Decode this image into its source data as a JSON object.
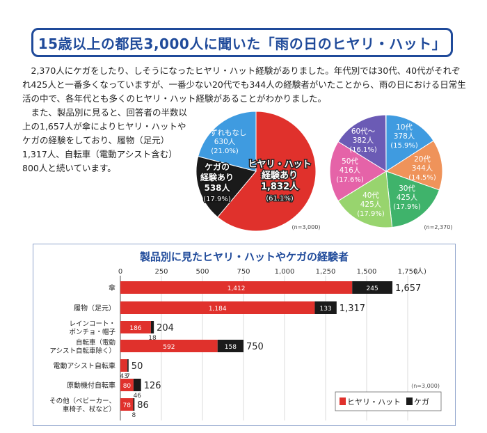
{
  "header": {
    "title": "15歳以上の都民3,000人に聞いた「雨の日のヒヤリ・ハット」"
  },
  "body": {
    "paragraph1": "2,370人にケガをしたり、しそうになったヒヤリ・ハット経験がありました。年代別では30代、40代がそれぞれ425人と一番多くなっていますが、一番少ない20代でも344人の経験者がいたことから、雨の日における日常生活の中で、各年代とも多くのヒヤリ・ハット経験があることがわかりました。",
    "paragraph2": "また、製品別に見ると、回答者の半数以上の1,657人が傘によりヒヤリ・ハットやケガの経験をしており、履物（足元）1,317人、自転車（電動アシスト含む）800人と続いています。"
  },
  "chart_data": [
    {
      "type": "pie",
      "note": "(n=3,000)",
      "slices": [
        {
          "label": "ヒヤリ・ハット経験あり",
          "count": "1,832人",
          "percent_label": "(61.1%)",
          "value": 1832,
          "percent": 61.1,
          "color": "#e0312c"
        },
        {
          "label": "ケガの経験あり",
          "count": "538人",
          "percent_label": "(17.9%)",
          "value": 538,
          "percent": 17.9,
          "color": "#1a1a1a"
        },
        {
          "label": "いずれもなし",
          "count": "630人",
          "percent_label": "(21.0%)",
          "value": 630,
          "percent": 21.0,
          "color": "#3f9be0"
        }
      ]
    },
    {
      "type": "pie",
      "note": "(n=2,370)",
      "slices": [
        {
          "label": "10代",
          "count": "378人",
          "percent_label": "(15.9%)",
          "value": 378,
          "percent": 15.9,
          "color": "#3f9be0"
        },
        {
          "label": "20代",
          "count": "344人",
          "percent_label": "(14.5%)",
          "value": 344,
          "percent": 14.5,
          "color": "#ef935a"
        },
        {
          "label": "30代",
          "count": "425人",
          "percent_label": "(17.9%)",
          "value": 425,
          "percent": 17.9,
          "color": "#3fb36b"
        },
        {
          "label": "40代",
          "count": "425人",
          "percent_label": "(17.9%)",
          "value": 425,
          "percent": 17.9,
          "color": "#98d46e"
        },
        {
          "label": "50代",
          "count": "416人",
          "percent_label": "(17.6%)",
          "value": 416,
          "percent": 17.6,
          "color": "#e563a8"
        },
        {
          "label": "60代～",
          "count": "382人",
          "percent_label": "(16.1%)",
          "value": 382,
          "percent": 16.1,
          "color": "#6b5bb5"
        }
      ]
    },
    {
      "type": "bar",
      "orientation": "horizontal",
      "stacked": true,
      "title": "製品別に見たヒヤリ・ハットやケガの経験者",
      "unit": "(人)",
      "xlim": [
        0,
        1750
      ],
      "xticks": [
        "0",
        "250",
        "500",
        "750",
        "1,000",
        "1,250",
        "1,500",
        "1,750"
      ],
      "note": "(n=3,000)",
      "grid": true,
      "legend_position": "bottom-right",
      "categories": [
        [
          "傘"
        ],
        [
          "履物（足元）"
        ],
        [
          "レインコート・",
          "ポンチョ・帽子"
        ],
        [
          "自転車（電動",
          "アシスト自転車除く）"
        ],
        [
          "電動アシスト自転車"
        ],
        [
          "原動機付自転車"
        ],
        [
          "その他（ベビーカー、",
          "車椅子、杖など）"
        ]
      ],
      "series": [
        {
          "name": "ヒヤリ・ハット",
          "color": "#e0312c",
          "values": [
            1412,
            1184,
            186,
            592,
            43,
            80,
            78
          ],
          "labels": [
            "1,412",
            "1,184",
            "186",
            "592",
            "43",
            "80",
            "78"
          ]
        },
        {
          "name": "ケガ",
          "color": "#1a1a1a",
          "values": [
            245,
            133,
            18,
            158,
            7,
            46,
            8
          ],
          "labels": [
            "245",
            "133",
            "18",
            "158",
            "7",
            "46",
            "8"
          ]
        }
      ],
      "totals": [
        "1,657",
        "1,317",
        "204",
        "750",
        "50",
        "126",
        "86"
      ]
    }
  ]
}
